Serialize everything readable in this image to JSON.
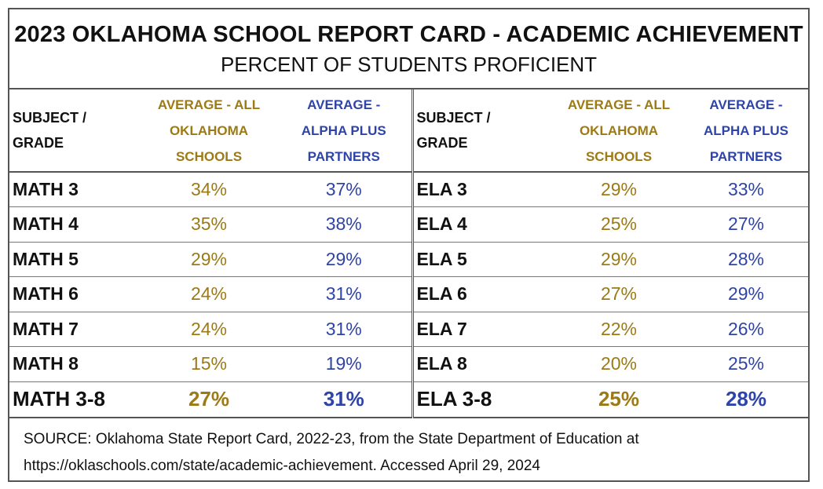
{
  "title": "2023 OKLAHOMA SCHOOL REPORT CARD - ACADEMIC ACHIEVEMENT",
  "subtitle": "PERCENT OF STUDENTS PROFICIENT",
  "headers": {
    "subject": [
      "SUBJECT /",
      "GRADE"
    ],
    "all_schools": [
      "AVERAGE - ALL",
      "OKLAHOMA",
      "SCHOOLS"
    ],
    "partners": [
      "AVERAGE -",
      "ALPHA PLUS",
      "PARTNERS"
    ]
  },
  "math": [
    {
      "subject": "MATH 3",
      "all": "34%",
      "partners": "37%"
    },
    {
      "subject": "MATH 4",
      "all": "35%",
      "partners": "38%"
    },
    {
      "subject": "MATH 5",
      "all": "29%",
      "partners": "29%"
    },
    {
      "subject": "MATH 6",
      "all": "24%",
      "partners": "31%"
    },
    {
      "subject": "MATH 7",
      "all": "24%",
      "partners": "31%"
    },
    {
      "subject": "MATH 8",
      "all": "15%",
      "partners": "19%"
    },
    {
      "subject": "MATH 3-8",
      "all": "27%",
      "partners": "31%"
    }
  ],
  "ela": [
    {
      "subject": "ELA 3",
      "all": "29%",
      "partners": "33%"
    },
    {
      "subject": "ELA 4",
      "all": "25%",
      "partners": "27%"
    },
    {
      "subject": "ELA 5",
      "all": "29%",
      "partners": "28%"
    },
    {
      "subject": "ELA 6",
      "all": "27%",
      "partners": "29%"
    },
    {
      "subject": "ELA 7",
      "all": "22%",
      "partners": "26%"
    },
    {
      "subject": "ELA 8",
      "all": "20%",
      "partners": "25%"
    },
    {
      "subject": "ELA 3-8",
      "all": "25%",
      "partners": "28%"
    }
  ],
  "source": [
    "SOURCE: Oklahoma State Report Card, 2022-23, from the State Department of Education at",
    "https://oklaschools.com/state/academic-achievement. Accessed April 29, 2024"
  ],
  "colors": {
    "all_schools": "#9c7a16",
    "partners": "#2f44a8"
  }
}
